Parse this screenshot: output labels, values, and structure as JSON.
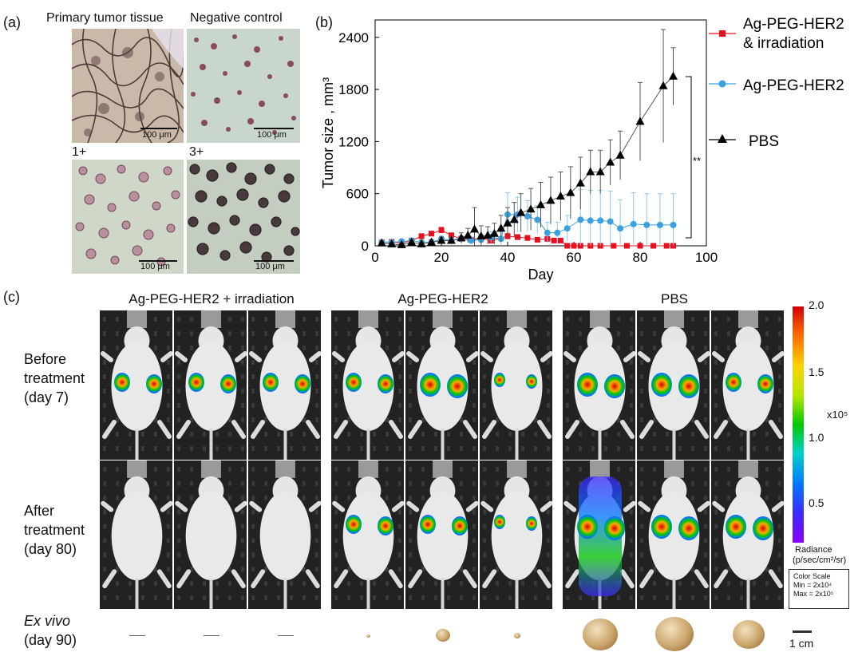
{
  "panels": {
    "a": {
      "label": "(a)",
      "titles": {
        "primary": "Primary tumor tissue",
        "negative": "Negative control",
        "one_plus": "1+",
        "three_plus": "3+"
      },
      "scalebar_text": "100 μm"
    },
    "b": {
      "label": "(b)",
      "significance": "**"
    },
    "c": {
      "label": "(c)",
      "groups": [
        "Ag-PEG-HER2 + irradiation",
        "Ag-PEG-HER2",
        "PBS"
      ],
      "row_before": [
        "Before",
        "treatment",
        "(day 7)"
      ],
      "row_after": [
        "After",
        "treatment",
        "(day 80)"
      ],
      "row_exvivo": [
        "Ex vivo",
        "(day 90)"
      ],
      "colorbar": {
        "ticks": [
          "2.0",
          "1.5",
          "1.0",
          "0.5"
        ],
        "multiplier": "x10⁵",
        "unit_label": "Radiance",
        "unit": "(p/sec/cm²/sr)",
        "scale_box": [
          "Color Scale",
          "Min = 2x10⁴",
          "Max = 2x10⁵"
        ]
      },
      "cm_label": "1 cm",
      "colors": {
        "high": "#d40000",
        "mid": "#00c800",
        "low": "#6a00ff"
      }
    }
  },
  "chart_data": {
    "type": "line",
    "xlabel": "Day",
    "ylabel": "Tumor size , mm³",
    "xlim": [
      0,
      100
    ],
    "ylim": [
      0,
      2600
    ],
    "xticks": [
      0,
      20,
      40,
      60,
      80,
      100
    ],
    "yticks": [
      0,
      600,
      1200,
      1800,
      2400
    ],
    "series": [
      {
        "name": "Ag-PEG-HER2 & irradiation",
        "legend_lines": [
          "Ag-PEG-HER2",
          "& irradiation"
        ],
        "color": "#e8101e",
        "marker": "square",
        "x": [
          2,
          5,
          8,
          11,
          14,
          17,
          20,
          23,
          26,
          29,
          32,
          35,
          40,
          43,
          46,
          49,
          52,
          54,
          56,
          58,
          60,
          62,
          65,
          68,
          72,
          76,
          80,
          84,
          88,
          90
        ],
        "y": [
          40,
          45,
          30,
          60,
          110,
          140,
          180,
          120,
          80,
          70,
          90,
          60,
          110,
          100,
          90,
          70,
          80,
          60,
          60,
          0,
          0,
          0,
          0,
          0,
          0,
          0,
          0,
          0,
          0,
          0
        ],
        "err": [
          20,
          20,
          20,
          25,
          30,
          30,
          35,
          30,
          30,
          30,
          30,
          30,
          35,
          30,
          30,
          25,
          25,
          20,
          20,
          5,
          5,
          5,
          5,
          5,
          5,
          5,
          5,
          5,
          5,
          5
        ]
      },
      {
        "name": "Ag-PEG-HER2",
        "legend_lines": [
          "Ag-PEG-HER2"
        ],
        "color": "#3aa0e0",
        "marker": "circle",
        "x": [
          2,
          5,
          8,
          11,
          14,
          17,
          20,
          23,
          26,
          29,
          32,
          35,
          38,
          40,
          43,
          46,
          49,
          52,
          55,
          58,
          62,
          65,
          68,
          71,
          74,
          78,
          82,
          86,
          90
        ],
        "y": [
          40,
          40,
          50,
          60,
          40,
          40,
          80,
          60,
          80,
          60,
          70,
          100,
          80,
          360,
          360,
          340,
          300,
          150,
          150,
          200,
          300,
          290,
          290,
          280,
          200,
          250,
          240,
          240,
          240
        ],
        "err": [
          20,
          20,
          25,
          25,
          20,
          20,
          30,
          30,
          35,
          40,
          50,
          60,
          80,
          250,
          200,
          180,
          160,
          120,
          120,
          150,
          350,
          350,
          350,
          350,
          330,
          360,
          360,
          360,
          360
        ]
      },
      {
        "name": "PBS",
        "legend_lines": [
          "PBS"
        ],
        "color": "#000000",
        "marker": "triangle",
        "x": [
          2,
          5,
          8,
          11,
          14,
          17,
          20,
          23,
          26,
          28,
          30,
          32,
          34,
          36,
          38,
          40,
          42,
          44,
          47,
          50,
          53,
          56,
          59,
          62,
          65,
          68,
          71,
          74,
          80,
          87,
          90
        ],
        "y": [
          30,
          20,
          10,
          40,
          20,
          40,
          60,
          60,
          90,
          120,
          190,
          110,
          120,
          140,
          200,
          260,
          300,
          380,
          420,
          470,
          520,
          570,
          610,
          720,
          850,
          850,
          960,
          1040,
          1430,
          1840,
          1950
        ],
        "err": [
          20,
          20,
          20,
          25,
          25,
          30,
          40,
          40,
          60,
          80,
          250,
          120,
          100,
          120,
          150,
          180,
          200,
          220,
          240,
          260,
          270,
          280,
          300,
          300,
          250,
          250,
          260,
          280,
          450,
          650,
          330
        ]
      }
    ]
  }
}
